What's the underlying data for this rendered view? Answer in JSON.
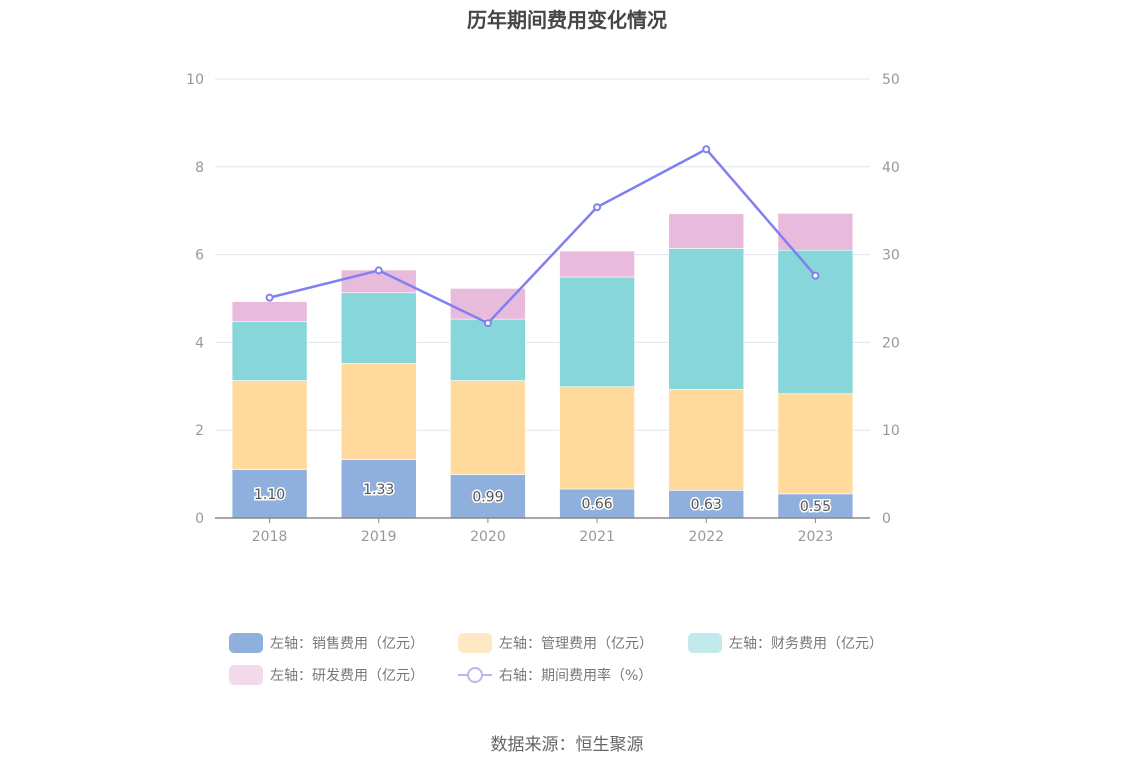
{
  "chart_data": {
    "type": "bar",
    "title": "历年期间费用变化情况",
    "categories": [
      "2018",
      "2019",
      "2020",
      "2021",
      "2022",
      "2023"
    ],
    "stacked": true,
    "y_left": {
      "ylim": [
        0,
        10
      ],
      "ticks": [
        0,
        2,
        4,
        6,
        8,
        10
      ]
    },
    "y_right": {
      "ylim": [
        0,
        50
      ],
      "ticks": [
        0,
        10,
        20,
        30,
        40,
        50
      ]
    },
    "series": [
      {
        "name": "左轴：销售费用（亿元）",
        "type": "bar",
        "axis": "left",
        "color": "#8fafdc",
        "values": [
          1.1,
          1.33,
          0.99,
          0.66,
          0.63,
          0.55
        ],
        "labels": [
          "1.10",
          "1.33",
          "0.99",
          "0.66",
          "0.63",
          "0.55"
        ]
      },
      {
        "name": "左轴：管理费用（亿元）",
        "type": "bar",
        "axis": "left",
        "color": "#ffda9c",
        "values": [
          2.03,
          2.19,
          2.14,
          2.33,
          2.3,
          2.28
        ]
      },
      {
        "name": "左轴：财务费用（亿元）",
        "type": "bar",
        "axis": "left",
        "color": "#86d6da",
        "values": [
          1.35,
          1.61,
          1.4,
          2.5,
          3.21,
          3.27
        ]
      },
      {
        "name": "左轴：研发费用（亿元）",
        "type": "bar",
        "axis": "left",
        "color": "#e8bbdc",
        "values": [
          0.45,
          0.52,
          0.7,
          0.59,
          0.79,
          0.84
        ]
      },
      {
        "name": "右轴：期间费用率（%）",
        "type": "line",
        "axis": "right",
        "color": "#8080f0",
        "values": [
          25.1,
          28.2,
          22.2,
          35.4,
          42.0,
          27.6
        ]
      }
    ],
    "legend_position": "bottom",
    "source": "数据来源：恒生聚源"
  }
}
